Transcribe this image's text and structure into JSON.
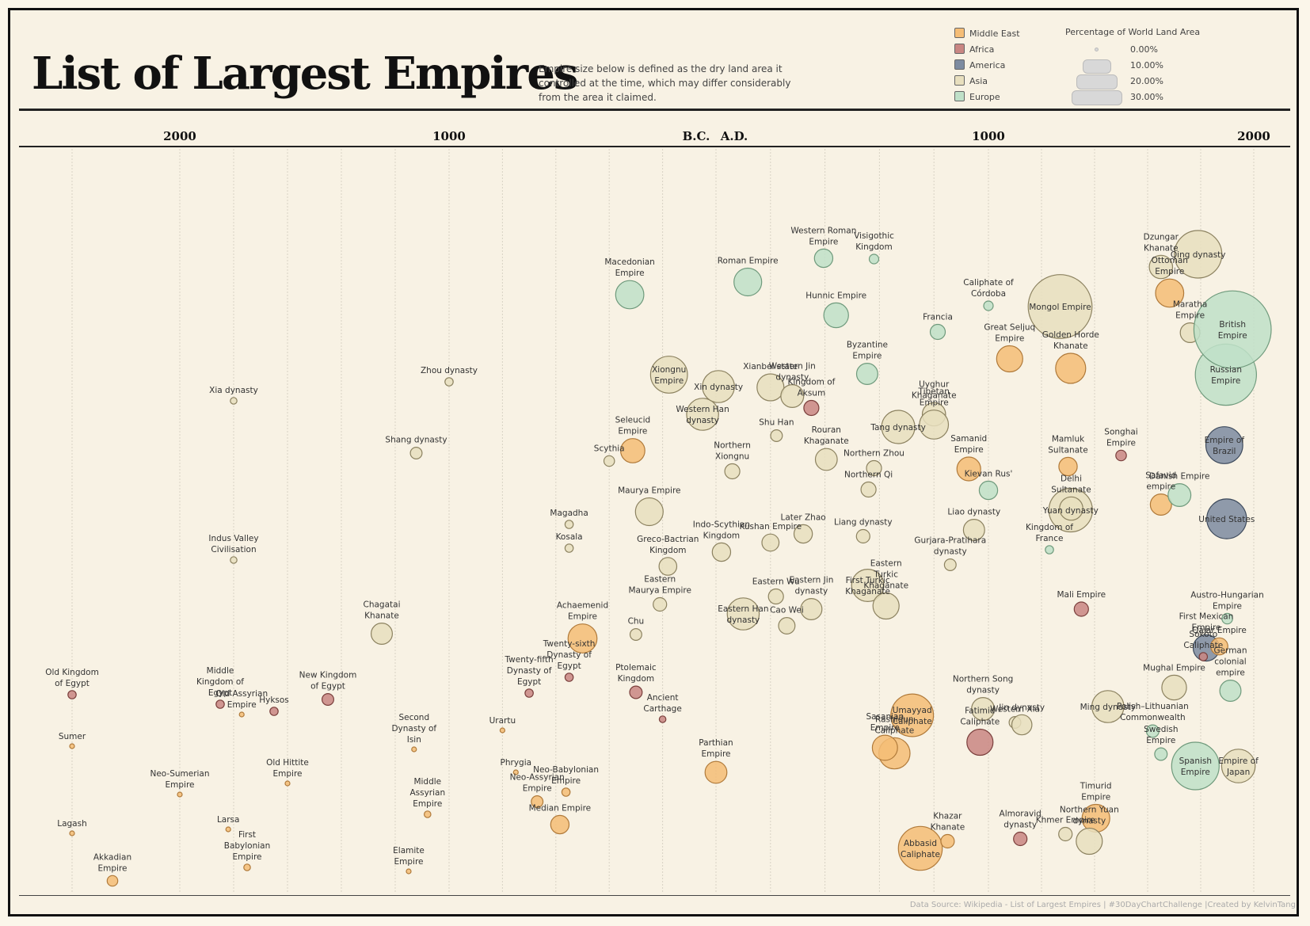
{
  "title": "List of Largest Empires",
  "subtitle": "Empire size below is defined as the dry land area it controlled at the time, which may differ considerably from the area it claimed.",
  "source": "Data Source: Wikipedia - List of Largest Empires | #30DayChartChallenge |Created by KelvinTang",
  "legend": {
    "regions": [
      {
        "name": "Middle East",
        "color": "#f5bd76"
      },
      {
        "name": "Africa",
        "color": "#c98682"
      },
      {
        "name": "America",
        "color": "#7d8ba0"
      },
      {
        "name": "Asia",
        "color": "#e8dfbe"
      },
      {
        "name": "Europe",
        "color": "#bfe0c8"
      }
    ],
    "size_title": "Percentage of World Land Area",
    "sizes": [
      "0.00%",
      "10.00%",
      "20.00%",
      "30.00%"
    ]
  },
  "chart_data": {
    "type": "scatter",
    "title": "List of Largest Empires",
    "x_ticks": [
      "2000",
      "1000",
      "B.C.",
      "A.D.",
      "1000",
      "2000"
    ],
    "grid": true,
    "size_encoding": "Percentage of World Land Area",
    "color_encoding": "region",
    "points": [
      {
        "name": "Old Kingdom of Egypt",
        "region": "Africa",
        "year": -2400,
        "pct": 0.3
      },
      {
        "name": "Sumer",
        "region": "Middle East",
        "year": -2400,
        "pct": 0.1
      },
      {
        "name": "Lagash",
        "region": "Middle East",
        "year": -2400,
        "pct": 0.1
      },
      {
        "name": "Akkadian Empire",
        "region": "Middle East",
        "year": -2250,
        "pct": 0.5
      },
      {
        "name": "Neo-Sumerian Empire",
        "region": "Middle East",
        "year": -2000,
        "pct": 0.1
      },
      {
        "name": "Xia dynasty",
        "region": "Asia",
        "year": -1800,
        "pct": 0.2
      },
      {
        "name": "Indus Valley Civilisation",
        "region": "Asia",
        "year": -1800,
        "pct": 0.2
      },
      {
        "name": "Middle Kingdom of Egypt",
        "region": "Africa",
        "year": -1850,
        "pct": 0.3
      },
      {
        "name": "Larsa",
        "region": "Middle East",
        "year": -1820,
        "pct": 0.1
      },
      {
        "name": "Old Assyrian Empire",
        "region": "Middle East",
        "year": -1770,
        "pct": 0.1
      },
      {
        "name": "First Babylonian Empire",
        "region": "Middle East",
        "year": -1750,
        "pct": 0.2
      },
      {
        "name": "Hyksos",
        "region": "Africa",
        "year": -1650,
        "pct": 0.3
      },
      {
        "name": "Old Hittite Empire",
        "region": "Middle East",
        "year": -1600,
        "pct": 0.1
      },
      {
        "name": "New Kingdom of Egypt",
        "region": "Africa",
        "year": -1450,
        "pct": 0.6
      },
      {
        "name": "Chagatai Khanate",
        "region": "Asia",
        "year": -1250,
        "pct": 2.0
      },
      {
        "name": "Shang dynasty",
        "region": "Asia",
        "year": -1122,
        "pct": 0.6
      },
      {
        "name": "Second Dynasty of Isin",
        "region": "Middle East",
        "year": -1130,
        "pct": 0.1
      },
      {
        "name": "Elamite Empire",
        "region": "Middle East",
        "year": -1150,
        "pct": 0.1
      },
      {
        "name": "Zhou dynasty",
        "region": "Asia",
        "year": -1000,
        "pct": 0.3
      },
      {
        "name": "Middle Assyrian Empire",
        "region": "Middle East",
        "year": -1080,
        "pct": 0.2
      },
      {
        "name": "Urartu",
        "region": "Middle East",
        "year": -800,
        "pct": 0.1
      },
      {
        "name": "Phrygia",
        "region": "Middle East",
        "year": -750,
        "pct": 0.1
      },
      {
        "name": "Neo-Assyrian Empire",
        "region": "Middle East",
        "year": -670,
        "pct": 0.6
      },
      {
        "name": "Twenty-fifth Dynasty of Egypt",
        "region": "Africa",
        "year": -700,
        "pct": 0.3
      },
      {
        "name": "Median Empire",
        "region": "Middle East",
        "year": -585,
        "pct": 1.5
      },
      {
        "name": "Neo-Babylonian Empire",
        "region": "Middle East",
        "year": -562,
        "pct": 0.3
      },
      {
        "name": "Achaemenid Empire",
        "region": "Middle East",
        "year": -500,
        "pct": 3.7
      },
      {
        "name": "Twenty-sixth Dynasty of Egypt",
        "region": "Africa",
        "year": -550,
        "pct": 0.3
      },
      {
        "name": "Magadha",
        "region": "Asia",
        "year": -550,
        "pct": 0.3
      },
      {
        "name": "Kosala",
        "region": "Asia",
        "year": -550,
        "pct": 0.3
      },
      {
        "name": "Scythia",
        "region": "Asia",
        "year": -400,
        "pct": 0.5
      },
      {
        "name": "Macedonian Empire",
        "region": "Europe",
        "year": -323,
        "pct": 3.5
      },
      {
        "name": "Seleucid Empire",
        "region": "Middle East",
        "year": -312,
        "pct": 2.6
      },
      {
        "name": "Maurya Empire",
        "region": "Asia",
        "year": -250,
        "pct": 3.4
      },
      {
        "name": "Chu",
        "region": "Asia",
        "year": -300,
        "pct": 0.6
      },
      {
        "name": "Ptolemaic Kingdom",
        "region": "Africa",
        "year": -300,
        "pct": 0.7
      },
      {
        "name": "Greco-Bactrian Kingdom",
        "region": "Asia",
        "year": -180,
        "pct": 1.4
      },
      {
        "name": "Eastern Maurya Empire",
        "region": "Asia",
        "year": -210,
        "pct": 0.8
      },
      {
        "name": "Ancient Carthage",
        "region": "Africa",
        "year": -200,
        "pct": 0.2
      },
      {
        "name": "Xiongnu Empire",
        "region": "Asia",
        "year": -176,
        "pct": 6.0
      },
      {
        "name": "Western Han dynasty",
        "region": "Asia",
        "year": -50,
        "pct": 4.5
      },
      {
        "name": "Parthian Empire",
        "region": "Middle East",
        "year": 0,
        "pct": 2.1
      },
      {
        "name": "Xin dynasty",
        "region": "Asia",
        "year": 9,
        "pct": 4.5
      },
      {
        "name": "Indo-Scythian Kingdom",
        "region": "Asia",
        "year": 20,
        "pct": 1.5
      },
      {
        "name": "Northern Xiongnu",
        "region": "Asia",
        "year": 60,
        "pct": 1.0
      },
      {
        "name": "Roman Empire",
        "region": "Europe",
        "year": 117,
        "pct": 3.4
      },
      {
        "name": "Eastern Han dynasty",
        "region": "Asia",
        "year": 100,
        "pct": 4.5
      },
      {
        "name": "Kushan Empire",
        "region": "Asia",
        "year": 200,
        "pct": 1.3
      },
      {
        "name": "Xianbei state",
        "region": "Asia",
        "year": 200,
        "pct": 3.2
      },
      {
        "name": "Shu Han",
        "region": "Asia",
        "year": 222,
        "pct": 0.6
      },
      {
        "name": "Eastern Wu",
        "region": "Asia",
        "year": 220,
        "pct": 1.0
      },
      {
        "name": "Cao Wei",
        "region": "Asia",
        "year": 260,
        "pct": 1.2
      },
      {
        "name": "Later Zhao",
        "region": "Asia",
        "year": 320,
        "pct": 1.5
      },
      {
        "name": "Western Jin dynasty",
        "region": "Asia",
        "year": 280,
        "pct": 2.3
      },
      {
        "name": "Eastern Jin dynasty",
        "region": "Asia",
        "year": 350,
        "pct": 2.0
      },
      {
        "name": "Western Roman Empire",
        "region": "Europe",
        "year": 395,
        "pct": 1.5
      },
      {
        "name": "Hunnic Empire",
        "region": "Europe",
        "year": 441,
        "pct": 2.7
      },
      {
        "name": "Rouran Khaganate",
        "region": "Asia",
        "year": 405,
        "pct": 2.1
      },
      {
        "name": "Visigothic Kingdom",
        "region": "Europe",
        "year": 580,
        "pct": 0.4
      },
      {
        "name": "Byzantine Empire",
        "region": "Europe",
        "year": 555,
        "pct": 2.0
      },
      {
        "name": "Northern Zhou",
        "region": "Asia",
        "year": 580,
        "pct": 1.0
      },
      {
        "name": "Northern Qi",
        "region": "Asia",
        "year": 560,
        "pct": 1.0
      },
      {
        "name": "Liang dynasty",
        "region": "Asia",
        "year": 540,
        "pct": 0.8
      },
      {
        "name": "First Turkic Khaganate",
        "region": "Asia",
        "year": 557,
        "pct": 4.6
      },
      {
        "name": "Eastern Turkic Khaganate",
        "region": "Asia",
        "year": 624,
        "pct": 3.0
      },
      {
        "name": "Umayyad Caliphate",
        "region": "Middle East",
        "year": 720,
        "pct": 8.0
      },
      {
        "name": "Rashidun Caliphate",
        "region": "Middle East",
        "year": 655,
        "pct": 4.3
      },
      {
        "name": "Sasanian Empire",
        "region": "Middle East",
        "year": 620,
        "pct": 2.8
      },
      {
        "name": "Tang dynasty",
        "region": "Asia",
        "year": 669,
        "pct": 4.9
      },
      {
        "name": "Uyghur Khaganate",
        "region": "Asia",
        "year": 800,
        "pct": 2.4
      },
      {
        "name": "Tibetan Empire",
        "region": "Asia",
        "year": 800,
        "pct": 3.7
      },
      {
        "name": "Abbasid Caliphate",
        "region": "Middle East",
        "year": 750,
        "pct": 8.5
      },
      {
        "name": "Khazar Khanate",
        "region": "Middle East",
        "year": 850,
        "pct": 0.8
      },
      {
        "name": "Francia",
        "region": "Europe",
        "year": 814,
        "pct": 1.0
      },
      {
        "name": "Gurjara-Pratihara dynasty",
        "region": "Asia",
        "year": 860,
        "pct": 0.6
      },
      {
        "name": "Liao dynasty",
        "region": "Asia",
        "year": 947,
        "pct": 2.0
      },
      {
        "name": "Samanid Empire",
        "region": "Middle East",
        "year": 928,
        "pct": 2.5
      },
      {
        "name": "Fatimid Caliphate",
        "region": "Africa",
        "year": 969,
        "pct": 3.0
      },
      {
        "name": "Northern Song dynasty",
        "region": "Asia",
        "year": 980,
        "pct": 2.3
      },
      {
        "name": "Kievan Rus'",
        "region": "Europe",
        "year": 1000,
        "pct": 1.5
      },
      {
        "name": "Caliphate of Córdoba",
        "region": "Europe",
        "year": 1000,
        "pct": 0.4
      },
      {
        "name": "Great Seljuq Empire",
        "region": "Middle East",
        "year": 1080,
        "pct": 3.0
      },
      {
        "name": "Almoravid dynasty",
        "region": "Africa",
        "year": 1120,
        "pct": 0.8
      },
      {
        "name": "Western Xia",
        "region": "Asia",
        "year": 1100,
        "pct": 0.6
      },
      {
        "name": "Jin dynasty",
        "region": "Asia",
        "year": 1126,
        "pct": 1.8
      },
      {
        "name": "Kingdom of Aksum",
        "region": "Africa",
        "year": 350,
        "pct": 1.0
      },
      {
        "name": "Kingdom of France",
        "region": "Europe",
        "year": 1230,
        "pct": 0.3
      },
      {
        "name": "Khmer Empire",
        "region": "Asia",
        "year": 1290,
        "pct": 0.8
      },
      {
        "name": "Mongol Empire",
        "region": "Asia",
        "year": 1270,
        "pct": 18.0
      },
      {
        "name": "Yuan dynasty",
        "region": "Asia",
        "year": 1310,
        "pct": 8.4
      },
      {
        "name": "Delhi Sultanate",
        "region": "Asia",
        "year": 1312,
        "pct": 2.4
      },
      {
        "name": "Mamluk Sultanate",
        "region": "Middle East",
        "year": 1300,
        "pct": 1.5
      },
      {
        "name": "Golden Horde Khanate",
        "region": "Middle East",
        "year": 1310,
        "pct": 4.0
      },
      {
        "name": "Mali Empire",
        "region": "Africa",
        "year": 1350,
        "pct": 0.9
      },
      {
        "name": "Timurid Empire",
        "region": "Middle East",
        "year": 1405,
        "pct": 3.4
      },
      {
        "name": "Northern Yuan dynasty",
        "region": "Asia",
        "year": 1380,
        "pct": 3.0
      },
      {
        "name": "Ming dynasty",
        "region": "Asia",
        "year": 1450,
        "pct": 4.5
      },
      {
        "name": "Polish–Lithuanian Commonwealth",
        "region": "Europe",
        "year": 1619,
        "pct": 0.7
      },
      {
        "name": "Songhai Empire",
        "region": "Africa",
        "year": 1500,
        "pct": 0.5
      },
      {
        "name": "Safavid empire",
        "region": "Middle East",
        "year": 1650,
        "pct": 2.0
      },
      {
        "name": "Ottoman Empire",
        "region": "Middle East",
        "year": 1683,
        "pct": 3.5
      },
      {
        "name": "Mughal Empire",
        "region": "Asia",
        "year": 1700,
        "pct": 2.7
      },
      {
        "name": "Swedish Empire",
        "region": "Europe",
        "year": 1650,
        "pct": 0.7
      },
      {
        "name": "Spanish Empire",
        "region": "Europe",
        "year": 1780,
        "pct": 10.0
      },
      {
        "name": "Danish Empire",
        "region": "Europe",
        "year": 1720,
        "pct": 2.3
      },
      {
        "name": "Dzungar Khanate",
        "region": "Asia",
        "year": 1650,
        "pct": 2.4
      },
      {
        "name": "Qing dynasty",
        "region": "Asia",
        "year": 1790,
        "pct": 10.0
      },
      {
        "name": "Maratha Empire",
        "region": "Asia",
        "year": 1760,
        "pct": 1.7
      },
      {
        "name": "First Mexican Empire",
        "region": "America",
        "year": 1821,
        "pct": 3.0
      },
      {
        "name": "Empire of Brazil",
        "region": "America",
        "year": 1889,
        "pct": 6.0
      },
      {
        "name": "United States",
        "region": "America",
        "year": 1898,
        "pct": 7.0
      },
      {
        "name": "Sokoto Caliphate",
        "region": "Africa",
        "year": 1810,
        "pct": 0.3
      },
      {
        "name": "Qajar Empire",
        "region": "Middle East",
        "year": 1870,
        "pct": 1.3
      },
      {
        "name": "Austro-Hungarian Empire",
        "region": "Europe",
        "year": 1900,
        "pct": 0.5
      },
      {
        "name": "German colonial empire",
        "region": "Europe",
        "year": 1912,
        "pct": 2.0
      },
      {
        "name": "Empire of Japan",
        "region": "Asia",
        "year": 1942,
        "pct": 5.0
      },
      {
        "name": "Russian Empire",
        "region": "Europe",
        "year": 1895,
        "pct": 16.5
      },
      {
        "name": "British Empire",
        "region": "Europe",
        "year": 1920,
        "pct": 26.4
      }
    ]
  }
}
